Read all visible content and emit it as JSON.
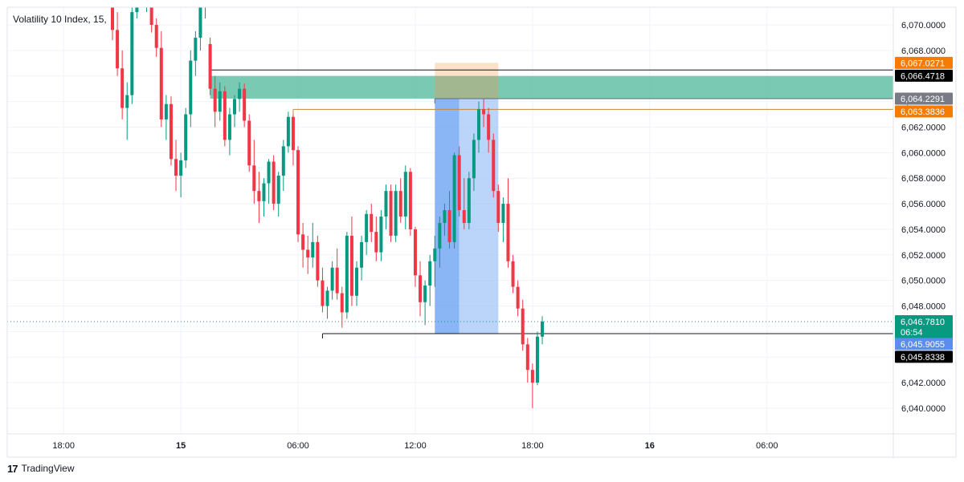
{
  "brand": {
    "logo_glyph": "17",
    "name": "TradingView"
  },
  "chart_data": {
    "type": "candlestick",
    "title": "Volatility 10 Index, 15,",
    "ylim": [
      6038.6,
      6072.6
    ],
    "y_ticks": [
      "6,070.0000",
      "6,068.0000",
      "6,066.0000",
      "6,064.0000",
      "6,062.0000",
      "6,060.0000",
      "6,058.0000",
      "6,056.0000",
      "6,054.0000",
      "6,052.0000",
      "6,050.0000",
      "6,048.0000",
      "6,046.0000",
      "6,044.0000",
      "6,042.0000",
      "6,040.0000"
    ],
    "y_tick_values": [
      6070,
      6068,
      6066,
      6064,
      6062,
      6060,
      6058,
      6056,
      6054,
      6052,
      6050,
      6048,
      6046,
      6044,
      6042,
      6040
    ],
    "x_ticks": [
      {
        "label": "18:00",
        "index": -10,
        "bold": false
      },
      {
        "label": "15",
        "index": 14,
        "bold": true
      },
      {
        "label": "06:00",
        "index": 38,
        "bold": false
      },
      {
        "label": "12:00",
        "index": 62,
        "bold": false
      },
      {
        "label": "18:00",
        "index": 86,
        "bold": false
      },
      {
        "label": "16",
        "index": 110,
        "bold": true
      },
      {
        "label": "06:00",
        "index": 134,
        "bold": false
      }
    ],
    "colors": {
      "up": "#089981",
      "down": "#f23645",
      "grid": "#f0f3fa",
      "axis": "#e0e3eb"
    },
    "candles": [
      [
        0,
        6072.9,
        6073.2,
        6068.8,
        6069.6
      ],
      [
        1,
        6069.6,
        6071.0,
        6066.0,
        6066.6
      ],
      [
        2,
        6066.6,
        6068.0,
        6062.6,
        6063.5
      ],
      [
        3,
        6063.5,
        6065.5,
        6061.0,
        6064.5
      ],
      [
        4,
        6064.5,
        6072.0,
        6063.8,
        6071.0
      ],
      [
        5,
        6071.0,
        6073.5,
        6070.5,
        6072.6
      ],
      [
        6,
        6072.6,
        6073.0,
        6071.5,
        6072.2
      ],
      [
        7,
        6072.2,
        6073.5,
        6071.0,
        6072.9
      ],
      [
        8,
        6072.9,
        6073.2,
        6069.4,
        6070.0
      ],
      [
        9,
        6070.0,
        6070.5,
        6067.5,
        6068.2
      ],
      [
        10,
        6068.2,
        6069.5,
        6062.0,
        6062.6
      ],
      [
        11,
        6062.6,
        6064.5,
        6061.0,
        6063.8
      ],
      [
        12,
        6063.8,
        6064.4,
        6059.0,
        6059.5
      ],
      [
        13,
        6059.5,
        6061.0,
        6057.0,
        6058.2
      ],
      [
        14,
        6058.2,
        6060.0,
        6056.5,
        6059.4
      ],
      [
        15,
        6059.4,
        6063.5,
        6058.8,
        6063.0
      ],
      [
        16,
        6063.0,
        6068.0,
        6062.0,
        6067.2
      ],
      [
        17,
        6067.2,
        6069.5,
        6066.0,
        6069.0
      ],
      [
        18,
        6069.0,
        6072.5,
        6068.0,
        6071.5
      ],
      [
        19,
        6071.5,
        6073.0,
        6070.5,
        6072.5
      ],
      [
        20,
        6068.5,
        6069.0,
        6064.5,
        6065.0
      ],
      [
        21,
        6065.0,
        6066.0,
        6062.0,
        6063.2
      ],
      [
        22,
        6063.2,
        6065.5,
        6062.5,
        6064.8
      ],
      [
        23,
        6064.8,
        6065.2,
        6060.5,
        6061.0
      ],
      [
        24,
        6061.0,
        6063.5,
        6059.8,
        6063.0
      ],
      [
        25,
        6063.0,
        6064.5,
        6062.0,
        6064.2
      ],
      [
        26,
        6064.2,
        6065.5,
        6063.2,
        6065.0
      ],
      [
        27,
        6065.0,
        6065.4,
        6062.0,
        6062.5
      ],
      [
        28,
        6062.5,
        6063.0,
        6058.5,
        6059.0
      ],
      [
        29,
        6059.0,
        6061.0,
        6056.0,
        6057.0
      ],
      [
        30,
        6057.0,
        6058.5,
        6054.5,
        6056.2
      ],
      [
        31,
        6056.2,
        6058.0,
        6055.0,
        6057.6
      ],
      [
        32,
        6057.6,
        6059.5,
        6056.0,
        6059.3
      ],
      [
        33,
        6059.3,
        6059.8,
        6055.5,
        6056.0
      ],
      [
        34,
        6056.0,
        6058.5,
        6055.0,
        6058.2
      ],
      [
        35,
        6058.2,
        6061.0,
        6057.0,
        6060.5
      ],
      [
        36,
        6060.5,
        6063.2,
        6060.0,
        6062.8
      ],
      [
        37,
        6062.8,
        6063.0,
        6059.0,
        6060.2
      ],
      [
        38,
        6060.2,
        6060.5,
        6053.0,
        6053.6
      ],
      [
        39,
        6053.6,
        6054.5,
        6051.0,
        6052.4
      ],
      [
        40,
        6052.4,
        6053.5,
        6050.5,
        6051.8
      ],
      [
        41,
        6051.8,
        6054.5,
        6051.0,
        6053.0
      ],
      [
        42,
        6053.0,
        6053.5,
        6049.5,
        6050.0
      ],
      [
        43,
        6050.0,
        6051.0,
        6047.5,
        6048.0
      ],
      [
        44,
        6048.0,
        6049.5,
        6047.0,
        6049.2
      ],
      [
        45,
        6049.2,
        6051.5,
        6048.5,
        6051.0
      ],
      [
        46,
        6051.0,
        6052.5,
        6048.5,
        6049.0
      ],
      [
        47,
        6049.0,
        6049.5,
        6046.3,
        6047.5
      ],
      [
        48,
        6047.5,
        6053.8,
        6047.0,
        6053.5
      ],
      [
        49,
        6053.5,
        6055.0,
        6048.0,
        6048.8
      ],
      [
        50,
        6048.8,
        6051.5,
        6048.0,
        6051.0
      ],
      [
        51,
        6051.0,
        6053.5,
        6050.0,
        6053.0
      ],
      [
        52,
        6053.0,
        6055.5,
        6052.0,
        6055.2
      ],
      [
        53,
        6055.2,
        6056.0,
        6053.0,
        6053.8
      ],
      [
        54,
        6053.8,
        6055.0,
        6051.5,
        6052.2
      ],
      [
        55,
        6052.2,
        6055.5,
        6051.5,
        6055.0
      ],
      [
        56,
        6055.0,
        6057.5,
        6054.0,
        6057.0
      ],
      [
        57,
        6057.0,
        6057.5,
        6053.0,
        6053.5
      ],
      [
        58,
        6053.5,
        6057.5,
        6053.0,
        6057.0
      ],
      [
        59,
        6057.0,
        6058.0,
        6054.5,
        6055.0
      ],
      [
        60,
        6055.0,
        6059.0,
        6054.0,
        6058.5
      ],
      [
        61,
        6058.5,
        6058.8,
        6053.5,
        6054.0
      ],
      [
        62,
        6054.0,
        6054.2,
        6049.5,
        6050.4
      ],
      [
        63,
        6050.4,
        6051.5,
        6047.2,
        6048.3
      ],
      [
        64,
        6048.3,
        6050.0,
        6046.5,
        6049.6
      ],
      [
        65,
        6049.6,
        6052.0,
        6048.0,
        6051.5
      ],
      [
        66,
        6051.5,
        6053.5,
        6049.5,
        6052.5
      ],
      [
        67,
        6052.5,
        6055.0,
        6051.0,
        6054.5
      ],
      [
        68,
        6054.5,
        6056.0,
        6053.5,
        6055.5
      ],
      [
        69,
        6055.5,
        6057.0,
        6052.5,
        6053.0
      ],
      [
        70,
        6053.0,
        6060.0,
        6052.5,
        6059.8
      ],
      [
        71,
        6059.8,
        6060.5,
        6055.0,
        6055.5
      ],
      [
        72,
        6055.5,
        6058.0,
        6054.0,
        6054.5
      ],
      [
        73,
        6054.5,
        6058.5,
        6054.0,
        6058.0
      ],
      [
        74,
        6058.0,
        6061.5,
        6057.0,
        6061.0
      ],
      [
        75,
        6061.0,
        6064.0,
        6060.0,
        6063.4
      ],
      [
        76,
        6063.4,
        6064.2,
        6062.0,
        6063.0
      ],
      [
        77,
        6063.0,
        6063.5,
        6060.0,
        6061.0
      ],
      [
        78,
        6061.0,
        6061.5,
        6056.5,
        6057.0
      ],
      [
        79,
        6057.0,
        6057.5,
        6053.8,
        6054.5
      ],
      [
        80,
        6054.5,
        6056.5,
        6053.0,
        6056.0
      ],
      [
        81,
        6056.0,
        6058.0,
        6051.0,
        6051.5
      ],
      [
        82,
        6051.5,
        6052.0,
        6049.0,
        6049.5
      ],
      [
        83,
        6049.5,
        6050.0,
        6047.2,
        6047.8
      ],
      [
        84,
        6047.8,
        6048.5,
        6044.5,
        6045.0
      ],
      [
        85,
        6045.0,
        6045.5,
        6042.0,
        6043.0
      ],
      [
        86,
        6043.0,
        6043.5,
        6040.0,
        6042.0
      ],
      [
        87,
        6042.0,
        6046.0,
        6041.8,
        6045.6
      ],
      [
        88,
        6045.6,
        6047.2,
        6045.0,
        6046.781
      ]
    ],
    "zones": [
      {
        "name": "supply-zone",
        "from_index": 20,
        "to_index": 162,
        "top": 6066.0,
        "bottom": 6064.2291,
        "color": "#4db89a",
        "opacity": 0.75
      },
      {
        "name": "projection-box-top",
        "from_index": 66,
        "to_index": 79,
        "top": 6067.0271,
        "bottom": 6066.0,
        "color": "#f7c99a",
        "opacity": 0.55
      },
      {
        "name": "projection-box-top-overlap",
        "from_index": 66,
        "to_index": 79,
        "top": 6066.0,
        "bottom": 6064.2291,
        "color": "#c9a46e",
        "opacity": 0.5
      },
      {
        "name": "projection-dark",
        "from_index": 66,
        "to_index": 71,
        "top": 6064.2291,
        "bottom": 6045.8338,
        "color": "#5a97f2",
        "opacity": 0.7
      },
      {
        "name": "projection-light",
        "from_index": 71,
        "to_index": 79,
        "top": 6064.2291,
        "bottom": 6045.8338,
        "color": "#9ec2f7",
        "opacity": 0.7
      }
    ],
    "lines": [
      {
        "name": "high-line",
        "from_index": 20,
        "to_index": 162,
        "value": 6066.4718,
        "color": "#131722",
        "width": 1
      },
      {
        "name": "projection-upper-line",
        "from_index": 66,
        "to_index": 162,
        "value": 6064.2291,
        "color": "#5c6c7e",
        "width": 1
      },
      {
        "name": "orange-level-line",
        "from_index": 37,
        "to_index": 162,
        "value": 6063.3836,
        "color": "#c08a3e",
        "width": 1
      },
      {
        "name": "low-line",
        "from_index": 43,
        "to_index": 162,
        "value": 6045.8338,
        "color": "#131722",
        "width": 1
      }
    ],
    "price_tags": [
      {
        "name": "tag-orange-top",
        "value": 6067.0271,
        "label": "6,067.0271",
        "bg": "#f57c00",
        "fg": "#ffffff"
      },
      {
        "name": "tag-black-high",
        "value": 6066.4718,
        "label": "6,066.4718",
        "bg": "#000000",
        "fg": "#ffffff"
      },
      {
        "name": "tag-gray",
        "value": 6064.2291,
        "label": "6,064.2291",
        "bg": "#787b86",
        "fg": "#ffffff"
      },
      {
        "name": "tag-orange-mid",
        "value": 6063.3836,
        "label": "6,063.3836",
        "bg": "#f57c00",
        "fg": "#ffffff"
      },
      {
        "name": "tag-blue",
        "value": 6045.9055,
        "label": "6,045.9055",
        "bg": "#5b8def",
        "fg": "#ffffff"
      },
      {
        "name": "tag-black-low",
        "value": 6045.8338,
        "label": "6,045.8338",
        "bg": "#000000",
        "fg": "#ffffff"
      }
    ],
    "last_price": {
      "value": 6046.781,
      "label": "6,046.7810",
      "countdown": "06:54",
      "bg": "#089981"
    }
  }
}
